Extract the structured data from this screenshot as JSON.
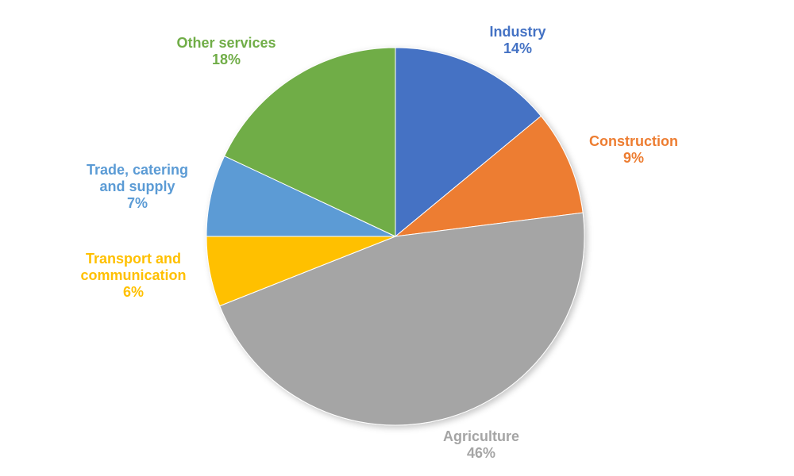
{
  "chart_data": {
    "type": "pie",
    "title": "",
    "start_angle_deg": 0,
    "direction": "clockwise",
    "slices": [
      {
        "label_lines": [
          "Industry"
        ],
        "value": 14,
        "value_label": "14%",
        "color": "#4472C4"
      },
      {
        "label_lines": [
          "Construction"
        ],
        "value": 9,
        "value_label": "9%",
        "color": "#ED7D31"
      },
      {
        "label_lines": [
          "Agriculture"
        ],
        "value": 46,
        "value_label": "46%",
        "color": "#A5A5A5"
      },
      {
        "label_lines": [
          "Transport and",
          "communication"
        ],
        "value": 6,
        "value_label": "6%",
        "color": "#FFC000"
      },
      {
        "label_lines": [
          "Trade, catering",
          "and supply"
        ],
        "value": 7,
        "value_label": "7%",
        "color": "#5B9BD5"
      },
      {
        "label_lines": [
          "Other services"
        ],
        "value": 18,
        "value_label": "18%",
        "color": "#70AD47"
      }
    ],
    "legend": "none",
    "data_labels": "outside"
  }
}
